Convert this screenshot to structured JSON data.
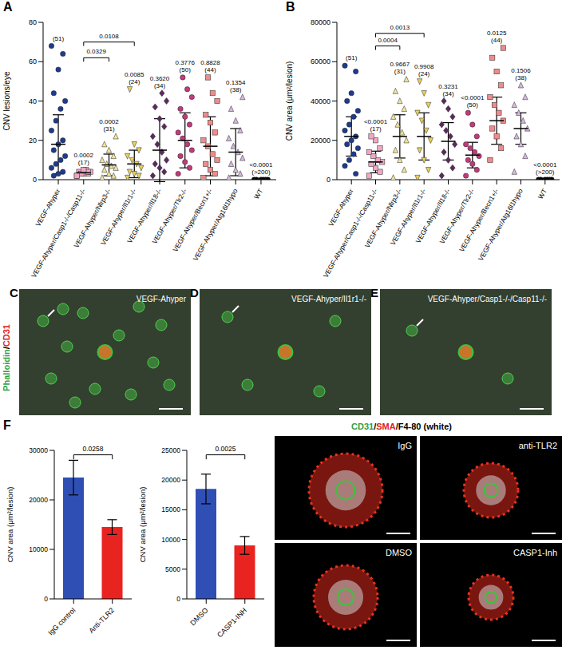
{
  "chart_data": [
    {
      "type": "scatter",
      "panel": "A",
      "y_label": "CNV lesions/eye",
      "ylim": [
        0,
        80
      ],
      "yticks": [
        0,
        20,
        40,
        60,
        80
      ],
      "categories": [
        "VEGF-Ahyper",
        "VEGF-Ahyper/Casp1-/-/Casp11-/-",
        "VEGF-Ahyper/Nlrp3-/-",
        "VEGF-Ahyper/Il1r1-/-",
        "VEGF-Ahyper/Il18-/-",
        "VEGF-Ahyper/Tlr2-/-",
        "VEGF-Ahyper/Becn1+/-",
        "VEGF-Ahyper/Atg16l1hypo",
        "WT"
      ],
      "groups": [
        {
          "color": "#1d3b8f",
          "marker": "circle",
          "points": [
            68,
            64,
            56,
            44,
            40,
            36,
            30,
            25,
            20,
            18,
            15,
            12,
            10,
            8,
            6,
            4,
            3,
            2
          ],
          "mean": 18,
          "sd": 15,
          "n": "(51)"
        },
        {
          "color": "#f0a7c3",
          "marker": "square",
          "points": [
            2,
            3,
            3,
            4,
            4,
            5,
            3,
            2,
            4,
            5
          ],
          "mean": 3.5,
          "sd": 1,
          "p": "0.0002",
          "n": "(17)"
        },
        {
          "color": "#f1e59a",
          "marker": "triangle",
          "points": [
            1,
            2,
            3,
            5,
            6,
            7,
            8,
            10,
            12,
            15,
            18,
            22
          ],
          "mean": 7.5,
          "sd": 5.5,
          "p": "0.0002",
          "n": "(31)"
        },
        {
          "color": "#e8d05c",
          "marker": "triangle-down",
          "points": [
            1,
            2,
            3,
            4,
            6,
            8,
            10,
            12,
            15,
            18,
            46
          ],
          "mean": 8,
          "sd": 7,
          "p": "0.0085",
          "n": "(24)"
        },
        {
          "color": "#5b2a5e",
          "marker": "diamond",
          "points": [
            2,
            4,
            6,
            8,
            10,
            14,
            18,
            22,
            27,
            31,
            37,
            40,
            44
          ],
          "mean": 15,
          "sd": 16,
          "p": "0.3620",
          "n": "(34)"
        },
        {
          "color": "#c23a7c",
          "marker": "circle",
          "points": [
            3,
            6,
            9,
            12,
            15,
            18,
            21,
            24,
            28,
            32,
            36,
            42,
            46,
            52
          ],
          "mean": 20,
          "sd": 14,
          "p": "0.3776",
          "n": "(50)"
        },
        {
          "color": "#ec8c8c",
          "marker": "square",
          "points": [
            1,
            3,
            5,
            8,
            10,
            13,
            17,
            20,
            24,
            29,
            33,
            40,
            44,
            52
          ],
          "mean": 17,
          "sd": 15,
          "p": "0.8828",
          "n": "(44)"
        },
        {
          "color": "#d6b8e0",
          "marker": "triangle",
          "points": [
            1,
            3,
            5,
            8,
            11,
            14,
            17,
            21,
            25,
            30,
            36,
            42
          ],
          "mean": 14,
          "sd": 12,
          "p": "0.1354",
          "n": "(38)"
        },
        {
          "color": "#000000",
          "marker": "circle",
          "points": [
            0,
            0,
            0,
            0,
            0,
            0
          ],
          "mean": 0,
          "sd": 0,
          "p": "<0.0001",
          "n": "(>200)"
        }
      ],
      "brackets": [
        {
          "from": 1,
          "to": 3,
          "label": "0.0108"
        },
        {
          "from": 1,
          "to": 2,
          "label": "0.0329"
        }
      ]
    },
    {
      "type": "scatter",
      "panel": "B",
      "y_label": "CNV area (μm²/lesion)",
      "ylim": [
        0,
        80000
      ],
      "yticks": [
        0,
        20000,
        40000,
        60000,
        80000
      ],
      "categories": [
        "VEGF-Ahyper",
        "VEGF-Ahyper/Casp1-/-/Casp11-/-",
        "VEGF-Ahyper/Nlrp3-/-",
        "VEGF-Ahyper/Il1r1-/-",
        "VEGF-Ahyper/Il18-/-",
        "VEGF-Ahyper/Tlr2-/-",
        "VEGF-Ahyper/Becn1+/-",
        "VEGF-Ahyper/Atg16l1hypo",
        "WT"
      ],
      "groups": [
        {
          "color": "#1d3b8f",
          "marker": "circle",
          "points": [
            58000,
            55000,
            44000,
            40000,
            35000,
            32000,
            28000,
            25000,
            22000,
            20000,
            18000,
            16000,
            13000,
            10000,
            7000,
            3000
          ],
          "mean": 22000,
          "sd": 10000,
          "n": "(51)"
        },
        {
          "color": "#f0a7c3",
          "marker": "square",
          "points": [
            2000,
            4000,
            6000,
            8000,
            9000,
            10000,
            12000,
            14000,
            16000,
            20000,
            22000
          ],
          "mean": 9000,
          "sd": 5500,
          "p": "<0.0001",
          "n": "(17)"
        },
        {
          "color": "#f1e59a",
          "marker": "triangle",
          "points": [
            1000,
            5000,
            10000,
            15000,
            20000,
            24000,
            28000,
            32000,
            36000,
            40000,
            45000,
            51000
          ],
          "mean": 22000,
          "sd": 11000,
          "p": "0.9667",
          "n": "(31)"
        },
        {
          "color": "#e8d05c",
          "marker": "triangle-down",
          "points": [
            1000,
            5000,
            10000,
            15000,
            20000,
            25000,
            30000,
            34000,
            38000,
            44000,
            50000
          ],
          "mean": 22000,
          "sd": 12000,
          "p": "0.9908",
          "n": "(24)"
        },
        {
          "color": "#5b2a5e",
          "marker": "diamond",
          "points": [
            2000,
            6000,
            10000,
            14000,
            18000,
            22000,
            25000,
            28000,
            32000,
            36000,
            40000
          ],
          "mean": 19500,
          "sd": 9500,
          "p": "0.3231",
          "n": "(34)"
        },
        {
          "color": "#c23a7c",
          "marker": "circle",
          "points": [
            2000,
            5000,
            8000,
            10000,
            12000,
            14000,
            16000,
            18000,
            22000,
            28000,
            34000
          ],
          "mean": 12500,
          "sd": 6500,
          "p": "<0.0001",
          "n": "(50)"
        },
        {
          "color": "#ec8c8c",
          "marker": "square",
          "points": [
            10000,
            16000,
            22000,
            26000,
            30000,
            34000,
            38000,
            42000,
            48000,
            55000,
            62000,
            67000
          ],
          "mean": 30000,
          "sd": 12000,
          "p": "0.0125",
          "n": "(44)"
        },
        {
          "color": "#d6b8e0",
          "marker": "triangle",
          "points": [
            4000,
            12000,
            18000,
            22000,
            26000,
            30000,
            34000,
            38000,
            42000,
            48000
          ],
          "mean": 26000,
          "sd": 8000,
          "p": "0.1506",
          "n": "(38)"
        },
        {
          "color": "#000000",
          "marker": "circle",
          "points": [
            0,
            0,
            0,
            0,
            0,
            0
          ],
          "mean": 0,
          "sd": 0,
          "p": "<0.0001",
          "n": "(>200)"
        }
      ],
      "brackets": [
        {
          "from": 1,
          "to": 3,
          "label": "0.0013"
        },
        {
          "from": 1,
          "to": 2,
          "label": "0.0004"
        }
      ]
    },
    {
      "type": "bar",
      "panel": "F",
      "y_label": "CNV area (μm²/lesion)",
      "ylim": [
        0,
        30000
      ],
      "yticks": [
        0,
        10000,
        20000,
        30000
      ],
      "categories": [
        "IgG control",
        "Anti-TLR2"
      ],
      "values": [
        24500,
        14500
      ],
      "errors": [
        3500,
        1500
      ],
      "colors": [
        "#2f4fb5",
        "#e82320"
      ],
      "brackets": [
        {
          "from": 0,
          "to": 1,
          "label": "0.0258"
        }
      ]
    },
    {
      "type": "bar",
      "y_label": "CNV area (μm²/lesion)",
      "ylim": [
        0,
        25000
      ],
      "yticks": [
        0,
        5000,
        10000,
        15000,
        20000,
        25000
      ],
      "categories": [
        "DMSO",
        "CASP1-INH"
      ],
      "values": [
        18500,
        9000
      ],
      "errors": [
        2500,
        1500
      ],
      "colors": [
        "#2f4fb5",
        "#e82320"
      ],
      "brackets": [
        {
          "from": 0,
          "to": 1,
          "label": "0.0025"
        }
      ]
    }
  ],
  "images": {
    "middle": {
      "stain": [
        {
          "text": "Phalloidin",
          "color": "#2ea043"
        },
        {
          "text": "/",
          "color": "#000000"
        },
        {
          "text": "CD31",
          "color": "#e0201b"
        }
      ],
      "panels": [
        {
          "letter": "C",
          "label": "VEGF-Ahyper"
        },
        {
          "letter": "D",
          "label": "VEGF-Ahyper/Il1r1-/-"
        },
        {
          "letter": "E",
          "label": "VEGF-Ahyper/Casp1-/-/Casp11-/-"
        }
      ]
    },
    "F": {
      "stain": [
        {
          "text": "CD31",
          "color": "#2ea043"
        },
        {
          "text": "/",
          "color": "#000000"
        },
        {
          "text": "SMA",
          "color": "#e0201b"
        },
        {
          "text": "/F4-80 (white)",
          "color": "#000000"
        }
      ],
      "panels": [
        "IgG",
        "anti-TLR2",
        "DMSO",
        "CASP1-Inh"
      ]
    }
  }
}
